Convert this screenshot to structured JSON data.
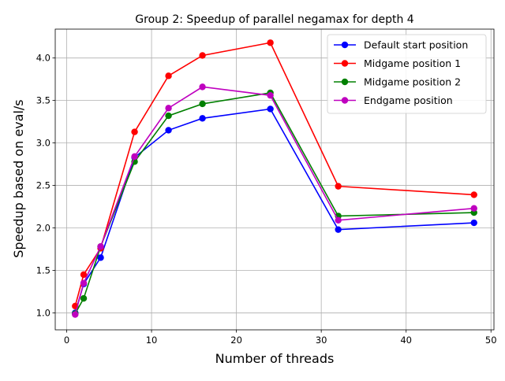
{
  "chart_data": {
    "type": "line",
    "title": "Group 2: Speedup of parallel negamax for depth 4",
    "xlabel": "Number of threads",
    "ylabel": "Speedup based on eval/s",
    "xlim": [
      -1.35,
      50.35
    ],
    "ylim": [
      0.8,
      4.34
    ],
    "xticks": [
      0,
      10,
      20,
      30,
      40,
      50
    ],
    "yticks": [
      1.0,
      1.5,
      2.0,
      2.5,
      3.0,
      3.5,
      4.0
    ],
    "xtick_labels": [
      "0",
      "10",
      "20",
      "30",
      "40",
      "50"
    ],
    "ytick_labels": [
      "1.0",
      "1.5",
      "2.0",
      "2.5",
      "3.0",
      "3.5",
      "4.0"
    ],
    "grid": true,
    "legend_position": "top-right",
    "x": [
      1,
      2,
      4,
      8,
      12,
      16,
      24,
      32,
      48
    ],
    "series": [
      {
        "name": "Default start position",
        "color": "#0000ff",
        "values": [
          1.0,
          1.34,
          1.65,
          2.83,
          3.15,
          3.29,
          3.4,
          1.98,
          2.06
        ]
      },
      {
        "name": "Midgame position 1",
        "color": "#ff0000",
        "values": [
          1.08,
          1.45,
          1.76,
          3.13,
          3.79,
          4.03,
          4.18,
          2.49,
          2.39
        ]
      },
      {
        "name": "Midgame position 2",
        "color": "#008000",
        "values": [
          0.99,
          1.17,
          1.78,
          2.78,
          3.32,
          3.46,
          3.59,
          2.14,
          2.18
        ]
      },
      {
        "name": "Endgame position",
        "color": "#bf00bf",
        "values": [
          0.98,
          1.35,
          1.78,
          2.84,
          3.41,
          3.66,
          3.56,
          2.09,
          2.23
        ]
      }
    ]
  }
}
